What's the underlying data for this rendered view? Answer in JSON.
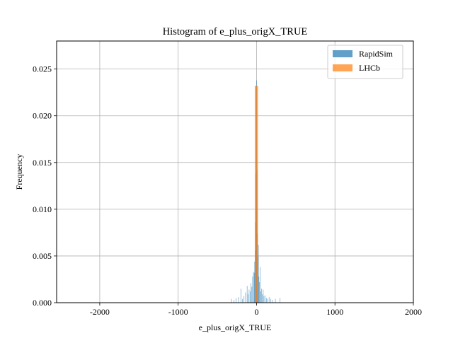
{
  "chart_data": {
    "type": "bar",
    "title": "Histogram of e_plus_origX_TRUE",
    "xlabel": "e_plus_origX_TRUE",
    "ylabel": "Frequency",
    "xlim": [
      -2550,
      2000
    ],
    "ylim": [
      0,
      0.028
    ],
    "xticks": [
      -2000,
      -1000,
      0,
      1000,
      2000
    ],
    "xtick_labels": [
      "-2000",
      "-1000",
      "0",
      "1000",
      "2000"
    ],
    "yticks": [
      0,
      0.005,
      0.01,
      0.015,
      0.02,
      0.025
    ],
    "ytick_labels": [
      "0.000",
      "0.005",
      "0.010",
      "0.015",
      "0.020",
      "0.025"
    ],
    "grid": true,
    "legend_position": "top-right",
    "series": [
      {
        "name": "RapidSim",
        "color": "#1f77b4",
        "alpha": 0.7,
        "bin_width": 6,
        "bins": [
          [
            -320,
            0.0004
          ],
          [
            -290,
            0.0003
          ],
          [
            -260,
            0.0005
          ],
          [
            -230,
            0.0006
          ],
          [
            -200,
            0.0015
          ],
          [
            -180,
            0.0004
          ],
          [
            -160,
            0.0007
          ],
          [
            -140,
            0.0011
          ],
          [
            -120,
            0.0018
          ],
          [
            -110,
            0.0009
          ],
          [
            -95,
            0.0014
          ],
          [
            -80,
            0.0012
          ],
          [
            -70,
            0.0021
          ],
          [
            -60,
            0.0017
          ],
          [
            -50,
            0.0028
          ],
          [
            -40,
            0.0033
          ],
          [
            -30,
            0.0032
          ],
          [
            -24,
            0.0044
          ],
          [
            -18,
            0.0056
          ],
          [
            -12,
            0.0086
          ],
          [
            -6,
            0.0138
          ],
          [
            0,
            0.0238
          ],
          [
            6,
            0.0142
          ],
          [
            12,
            0.0074
          ],
          [
            18,
            0.0049
          ],
          [
            24,
            0.0062
          ],
          [
            30,
            0.0028
          ],
          [
            38,
            0.0022
          ],
          [
            46,
            0.0038
          ],
          [
            55,
            0.0012
          ],
          [
            65,
            0.0015
          ],
          [
            75,
            0.0009
          ],
          [
            85,
            0.0014
          ],
          [
            95,
            0.0007
          ],
          [
            110,
            0.0008
          ],
          [
            125,
            0.0005
          ],
          [
            140,
            0.0004
          ],
          [
            160,
            0.0006
          ],
          [
            180,
            0.0004
          ],
          [
            200,
            0.0003
          ],
          [
            240,
            0.0004
          ],
          [
            300,
            0.0005
          ]
        ]
      },
      {
        "name": "LHCb",
        "color": "#ff7f0e",
        "alpha": 0.7,
        "bin_width": 40,
        "bins": [
          [
            -2.5,
            0.0232
          ]
        ]
      }
    ]
  }
}
